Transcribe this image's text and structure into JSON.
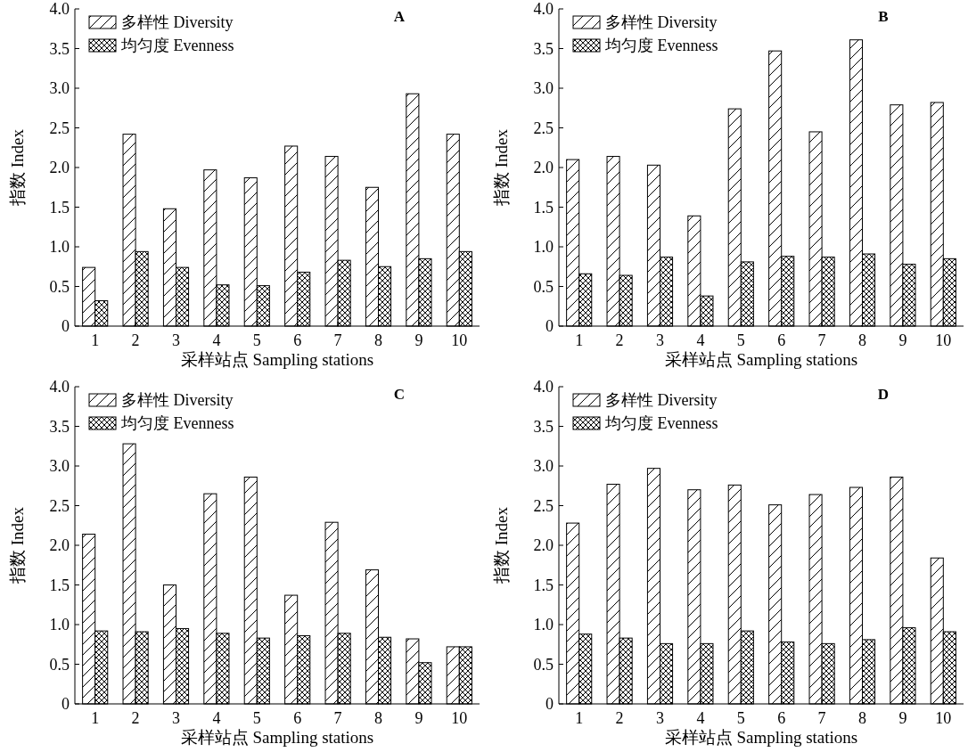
{
  "chart_data": [
    {
      "type": "bar",
      "title": "A",
      "xlabel": "采样站点 Sampling stations",
      "ylabel": "指数 Index",
      "categories": [
        "1",
        "2",
        "3",
        "4",
        "5",
        "6",
        "7",
        "8",
        "9",
        "10"
      ],
      "ylim": [
        0,
        4
      ],
      "yticks": [
        {
          "value": 0,
          "label": "0"
        },
        {
          "value": 0.5,
          "label": "0.5"
        },
        {
          "value": 1,
          "label": "1.0"
        },
        {
          "value": 1.5,
          "label": "1.5"
        },
        {
          "value": 2,
          "label": "2.0"
        },
        {
          "value": 2.5,
          "label": "2.5"
        },
        {
          "value": 3,
          "label": "3.0"
        },
        {
          "value": 3.5,
          "label": "3.5"
        },
        {
          "value": 4,
          "label": "4.0"
        }
      ],
      "legend": "top left",
      "series": [
        {
          "name": "多样性 Diversity",
          "color": "#000000",
          "values": [
            0.74,
            2.42,
            1.48,
            1.97,
            1.87,
            2.27,
            2.14,
            1.75,
            2.93,
            2.42
          ]
        },
        {
          "name": "均匀度 Evenness",
          "color": "#000000",
          "values": [
            0.32,
            0.94,
            0.74,
            0.52,
            0.51,
            0.68,
            0.83,
            0.75,
            0.85,
            0.94
          ]
        }
      ]
    },
    {
      "type": "bar",
      "title": "B",
      "xlabel": "采样站点 Sampling stations",
      "ylabel": "指数 Index",
      "categories": [
        "1",
        "2",
        "3",
        "4",
        "5",
        "6",
        "7",
        "8",
        "9",
        "10"
      ],
      "ylim": [
        0,
        4
      ],
      "yticks": [
        {
          "value": 0,
          "label": "0"
        },
        {
          "value": 0.5,
          "label": "0.5"
        },
        {
          "value": 1,
          "label": "1.0"
        },
        {
          "value": 1.5,
          "label": "1.5"
        },
        {
          "value": 2,
          "label": "2.0"
        },
        {
          "value": 2.5,
          "label": "2.5"
        },
        {
          "value": 3,
          "label": "3.0"
        },
        {
          "value": 3.5,
          "label": "3.5"
        },
        {
          "value": 4,
          "label": "4.0"
        }
      ],
      "legend": "top left",
      "series": [
        {
          "name": "多样性 Diversity",
          "color": "#000000",
          "values": [
            2.1,
            2.14,
            2.03,
            1.39,
            2.74,
            3.47,
            2.45,
            3.61,
            2.79,
            2.82
          ]
        },
        {
          "name": "均匀度 Evenness",
          "color": "#000000",
          "values": [
            0.66,
            0.64,
            0.87,
            0.38,
            0.81,
            0.88,
            0.87,
            0.91,
            0.78,
            0.85
          ]
        }
      ]
    },
    {
      "type": "bar",
      "title": "C",
      "xlabel": "采样站点 Sampling stations",
      "ylabel": "指数 Index",
      "categories": [
        "1",
        "2",
        "3",
        "4",
        "5",
        "6",
        "7",
        "8",
        "9",
        "10"
      ],
      "ylim": [
        0,
        4
      ],
      "yticks": [
        {
          "value": 0,
          "label": "0"
        },
        {
          "value": 0.5,
          "label": "0.5"
        },
        {
          "value": 1,
          "label": "1.0"
        },
        {
          "value": 1.5,
          "label": "1.5"
        },
        {
          "value": 2,
          "label": "2.0"
        },
        {
          "value": 2.5,
          "label": "2.5"
        },
        {
          "value": 3,
          "label": "3.0"
        },
        {
          "value": 3.5,
          "label": "3.5"
        },
        {
          "value": 4,
          "label": "4.0"
        }
      ],
      "legend": "top left",
      "series": [
        {
          "name": "多样性 Diversity",
          "color": "#000000",
          "values": [
            2.14,
            3.28,
            1.5,
            2.65,
            2.86,
            1.37,
            2.29,
            1.69,
            0.82,
            0.72
          ]
        },
        {
          "name": "均匀度 Evenness",
          "color": "#000000",
          "values": [
            0.92,
            0.91,
            0.95,
            0.89,
            0.83,
            0.86,
            0.89,
            0.84,
            0.52,
            0.72
          ]
        }
      ]
    },
    {
      "type": "bar",
      "title": "D",
      "xlabel": "采样站点 Sampling stations",
      "ylabel": "指数 Index",
      "categories": [
        "1",
        "2",
        "3",
        "4",
        "5",
        "6",
        "7",
        "8",
        "9",
        "10"
      ],
      "ylim": [
        0,
        4
      ],
      "yticks": [
        {
          "value": 0,
          "label": "0"
        },
        {
          "value": 0.5,
          "label": "0.5"
        },
        {
          "value": 1,
          "label": "1.0"
        },
        {
          "value": 1.5,
          "label": "1.5"
        },
        {
          "value": 2,
          "label": "2.0"
        },
        {
          "value": 2.5,
          "label": "2.5"
        },
        {
          "value": 3,
          "label": "3.0"
        },
        {
          "value": 3.5,
          "label": "3.5"
        },
        {
          "value": 4,
          "label": "4.0"
        }
      ],
      "legend": "top left",
      "series": [
        {
          "name": "多样性 Diversity",
          "color": "#000000",
          "values": [
            2.28,
            2.77,
            2.97,
            2.7,
            2.76,
            2.51,
            2.64,
            2.73,
            2.86,
            1.84
          ]
        },
        {
          "name": "均匀度 Evenness",
          "color": "#000000",
          "values": [
            0.88,
            0.83,
            0.76,
            0.76,
            0.92,
            0.78,
            0.76,
            0.81,
            0.96,
            0.91
          ]
        }
      ]
    }
  ]
}
